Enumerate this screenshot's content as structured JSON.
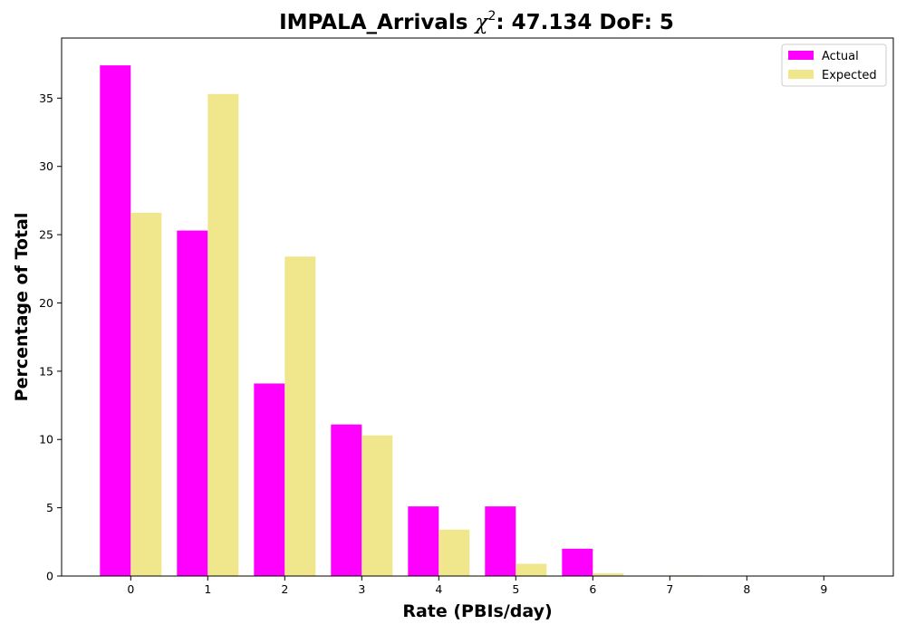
{
  "chart_data": {
    "type": "bar",
    "title_main": "IMPALA_Arrivals ",
    "title_chi": "χ",
    "title_sup": "2",
    "title_rest": ": 47.134 DoF: 5",
    "xlabel": "Rate (PBIs/day)",
    "ylabel": "Percentage of Total",
    "categories": [
      "0",
      "1",
      "2",
      "3",
      "4",
      "5",
      "6",
      "7",
      "8",
      "9"
    ],
    "series": [
      {
        "name": "Actual",
        "color": "#ff00ff",
        "values": [
          37.4,
          25.3,
          14.1,
          11.1,
          5.1,
          5.1,
          2.0,
          0,
          0,
          0
        ]
      },
      {
        "name": "Expected",
        "color": "#f0e68c",
        "values": [
          26.6,
          35.3,
          23.4,
          10.3,
          3.4,
          0.9,
          0.2,
          0.05,
          0,
          0
        ]
      }
    ],
    "ylim": [
      0,
      39.4
    ],
    "yticks": [
      0,
      5,
      10,
      15,
      20,
      25,
      30,
      35
    ],
    "legend_position": "top-right",
    "grid": false
  }
}
